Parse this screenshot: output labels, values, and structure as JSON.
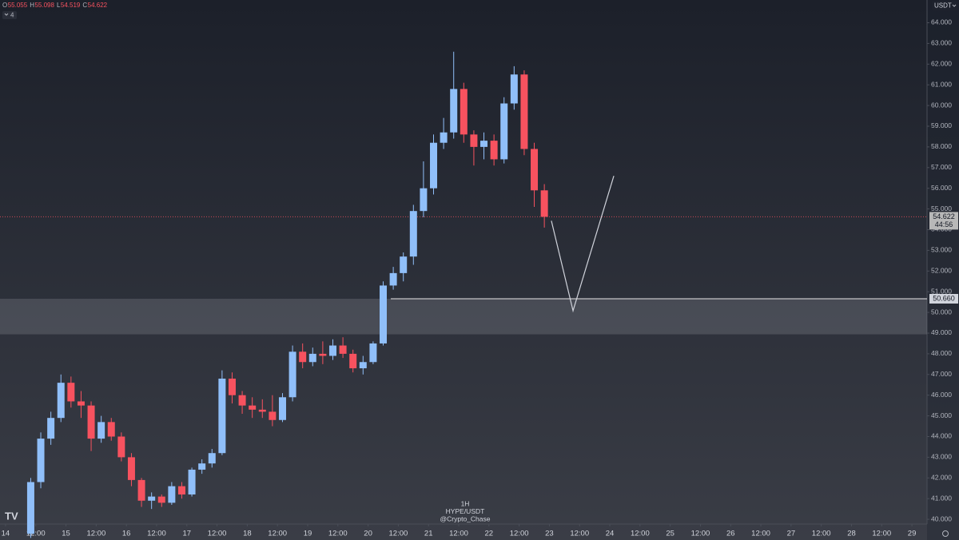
{
  "chart_data": {
    "type": "candlestick",
    "header": [
      {
        "key": "O",
        "value": "55.055"
      },
      {
        "key": "H",
        "value": "55.098"
      },
      {
        "key": "L",
        "value": "54.519"
      },
      {
        "key": "C",
        "value": "54.622"
      }
    ],
    "indicators": "4",
    "currency": "USDT",
    "watermark": {
      "interval": "1H",
      "symbol": "HYPE/USDT",
      "author": "@Crypto_Chase"
    },
    "up_color": "#90bff9",
    "down_color": "#f7525f",
    "x": [
      8,
      12,
      16,
      20,
      24,
      28,
      32,
      36,
      40,
      44,
      48,
      52,
      56,
      60,
      64,
      68,
      72,
      76,
      80,
      84,
      88,
      92,
      96,
      100,
      104,
      108,
      112,
      116,
      120,
      124,
      128,
      132,
      136,
      140,
      144,
      148,
      152,
      156,
      160,
      164,
      168,
      172,
      176,
      180,
      184,
      188,
      192,
      196,
      200,
      204,
      208,
      212
    ],
    "open": [
      39.3,
      41.8,
      43.9,
      44.9,
      46.6,
      45.7,
      45.5,
      43.9,
      44.7,
      44.0,
      43.0,
      41.9,
      40.9,
      41.1,
      40.8,
      41.6,
      41.2,
      42.4,
      42.7,
      43.2,
      46.8,
      46.0,
      45.5,
      45.3,
      45.2,
      44.8,
      45.9,
      48.1,
      47.6,
      48.0,
      47.9,
      48.4,
      48.0,
      47.3,
      47.6,
      48.5,
      51.3,
      51.9,
      52.7,
      54.9,
      56.0,
      58.2,
      58.7,
      60.8,
      58.6,
      58.0,
      58.3,
      57.4,
      60.1,
      61.5,
      57.9,
      55.9
    ],
    "high": [
      42.0,
      44.2,
      45.2,
      47.0,
      46.9,
      46.2,
      45.7,
      45.0,
      44.9,
      44.2,
      43.2,
      42.0,
      41.3,
      41.2,
      41.8,
      41.8,
      42.5,
      42.9,
      43.4,
      47.2,
      47.1,
      46.2,
      45.9,
      45.8,
      46.0,
      46.1,
      48.4,
      48.5,
      48.3,
      48.6,
      48.7,
      48.8,
      48.2,
      47.9,
      48.6,
      51.5,
      52.2,
      52.9,
      55.2,
      57.3,
      58.6,
      59.4,
      62.6,
      61.1,
      58.8,
      58.7,
      58.6,
      60.4,
      61.9,
      61.7,
      58.2,
      56.2
    ],
    "low": [
      39.1,
      41.5,
      43.6,
      44.7,
      45.4,
      44.9,
      43.3,
      43.7,
      43.8,
      42.8,
      41.6,
      40.6,
      40.5,
      40.6,
      40.7,
      41.0,
      41.1,
      42.2,
      42.5,
      43.1,
      45.6,
      45.1,
      44.9,
      44.9,
      44.5,
      44.7,
      45.7,
      47.3,
      47.4,
      47.5,
      47.7,
      47.8,
      47.1,
      47.0,
      47.5,
      48.4,
      51.1,
      51.5,
      52.3,
      54.6,
      55.7,
      57.9,
      58.4,
      58.2,
      57.1,
      57.4,
      57.1,
      57.2,
      59.8,
      57.6,
      55.1,
      54.1
    ],
    "close": [
      41.8,
      43.9,
      44.9,
      46.6,
      45.7,
      45.5,
      43.9,
      44.7,
      44.0,
      43.0,
      41.9,
      40.9,
      41.1,
      40.8,
      41.6,
      41.2,
      42.4,
      42.7,
      43.2,
      46.8,
      46.0,
      45.5,
      45.3,
      45.2,
      44.8,
      45.9,
      48.1,
      47.6,
      48.0,
      47.9,
      48.4,
      48.0,
      47.3,
      47.6,
      48.5,
      51.3,
      51.9,
      52.7,
      54.9,
      56.0,
      58.2,
      58.7,
      60.8,
      58.6,
      58.0,
      58.3,
      57.4,
      60.1,
      61.5,
      57.9,
      55.9,
      54.622
    ],
    "last_price": {
      "value": 54.622,
      "label": "54.622",
      "countdown": "44:56"
    },
    "level": {
      "value": 50.66,
      "label": "50.660",
      "start": 153
    },
    "zone": [
      48.94,
      50.66
    ],
    "projection": {
      "x": [
        216.8,
        225.4,
        241.6
      ],
      "y": [
        54.43,
        50.08,
        56.6
      ]
    },
    "xlim": [
      -2.2,
      366
    ],
    "ylim": [
      39.0,
      65.1
    ],
    "yticks": [
      {
        "value": 40,
        "label": "40.000"
      },
      {
        "value": 41,
        "label": "41.000"
      },
      {
        "value": 42,
        "label": "42.000"
      },
      {
        "value": 43,
        "label": "43.000"
      },
      {
        "value": 44,
        "label": "44.000"
      },
      {
        "value": 45,
        "label": "45.000"
      },
      {
        "value": 46,
        "label": "46.000"
      },
      {
        "value": 47,
        "label": "47.000"
      },
      {
        "value": 48,
        "label": "48.000"
      },
      {
        "value": 49,
        "label": "49.000"
      },
      {
        "value": 50,
        "label": "50.000"
      },
      {
        "value": 51,
        "label": "51.000"
      },
      {
        "value": 52,
        "label": "52.000"
      },
      {
        "value": 53,
        "label": "53.000"
      },
      {
        "value": 54,
        "label": "54.000"
      },
      {
        "value": 55,
        "label": "55.000"
      },
      {
        "value": 56,
        "label": "56.000"
      },
      {
        "value": 57,
        "label": "57.000"
      },
      {
        "value": 58,
        "label": "58.000"
      },
      {
        "value": 59,
        "label": "59.000"
      },
      {
        "value": 60,
        "label": "60.000"
      },
      {
        "value": 61,
        "label": "61.000"
      },
      {
        "value": 62,
        "label": "62.000"
      },
      {
        "value": 63,
        "label": "63.000"
      },
      {
        "value": 64,
        "label": "64.000"
      }
    ],
    "xticks": [
      {
        "value": 0,
        "label": "14"
      },
      {
        "value": 12,
        "label": "12:00"
      },
      {
        "value": 24,
        "label": "15"
      },
      {
        "value": 36,
        "label": "12:00"
      },
      {
        "value": 48,
        "label": "16"
      },
      {
        "value": 60,
        "label": "12:00"
      },
      {
        "value": 72,
        "label": "17"
      },
      {
        "value": 84,
        "label": "12:00"
      },
      {
        "value": 96,
        "label": "18"
      },
      {
        "value": 108,
        "label": "12:00"
      },
      {
        "value": 120,
        "label": "19"
      },
      {
        "value": 132,
        "label": "12:00"
      },
      {
        "value": 144,
        "label": "20"
      },
      {
        "value": 156,
        "label": "12:00"
      },
      {
        "value": 168,
        "label": "21"
      },
      {
        "value": 180,
        "label": "12:00"
      },
      {
        "value": 192,
        "label": "22"
      },
      {
        "value": 204,
        "label": "12:00"
      },
      {
        "value": 216,
        "label": "23"
      },
      {
        "value": 228,
        "label": "12:00"
      },
      {
        "value": 240,
        "label": "24"
      },
      {
        "value": 252,
        "label": "12:00"
      },
      {
        "value": 264,
        "label": "25"
      },
      {
        "value": 276,
        "label": "12:00"
      },
      {
        "value": 288,
        "label": "26"
      },
      {
        "value": 300,
        "label": "12:00"
      },
      {
        "value": 312,
        "label": "27"
      },
      {
        "value": 324,
        "label": "12:00"
      },
      {
        "value": 336,
        "label": "28"
      },
      {
        "value": 348,
        "label": "12:00"
      },
      {
        "value": 360,
        "label": "29"
      }
    ]
  }
}
